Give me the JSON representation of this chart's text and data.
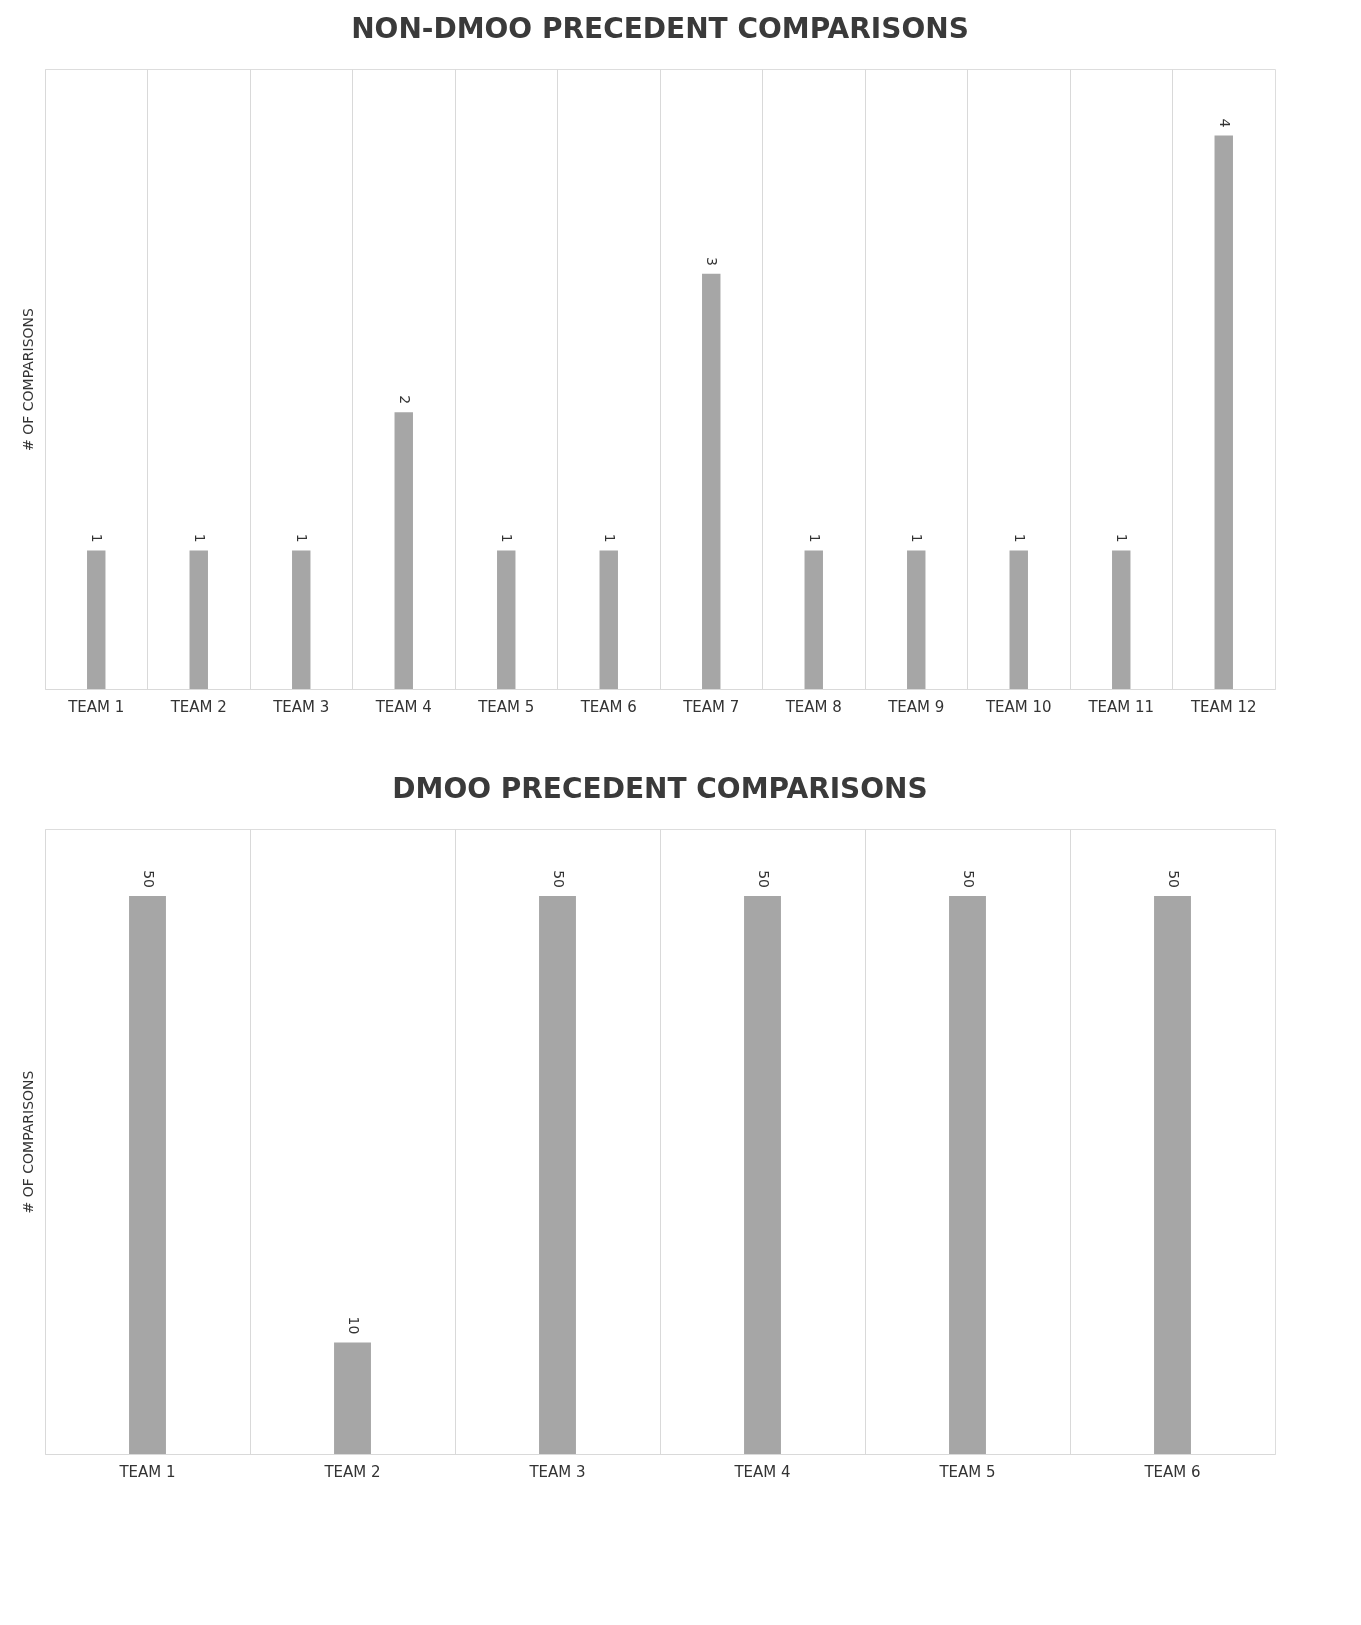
{
  "chart_data": [
    {
      "type": "bar",
      "title": "NON-DMOO PRECEDENT COMPARISONS",
      "ylabel": "# OF COMPARISONS",
      "categories": [
        "TEAM 1",
        "TEAM 2",
        "TEAM 3",
        "TEAM 4",
        "TEAM 5",
        "TEAM 6",
        "TEAM 7",
        "TEAM 8",
        "TEAM 9",
        "TEAM 10",
        "TEAM 11",
        "TEAM 12"
      ],
      "values": [
        1,
        1,
        1,
        2,
        1,
        1,
        3,
        1,
        1,
        1,
        1,
        4
      ],
      "color": "#a6a6a6",
      "data_labels": true,
      "grid": "x"
    },
    {
      "type": "bar",
      "title": "DMOO PRECEDENT COMPARISONS",
      "ylabel": "# OF COMPARISONS",
      "categories": [
        "TEAM 1",
        "TEAM 2",
        "TEAM 3",
        "TEAM 4",
        "TEAM 5",
        "TEAM 6"
      ],
      "values": [
        50,
        10,
        50,
        50,
        50,
        50
      ],
      "color": "#a6a6a6",
      "data_labels": true,
      "grid": "x"
    }
  ]
}
